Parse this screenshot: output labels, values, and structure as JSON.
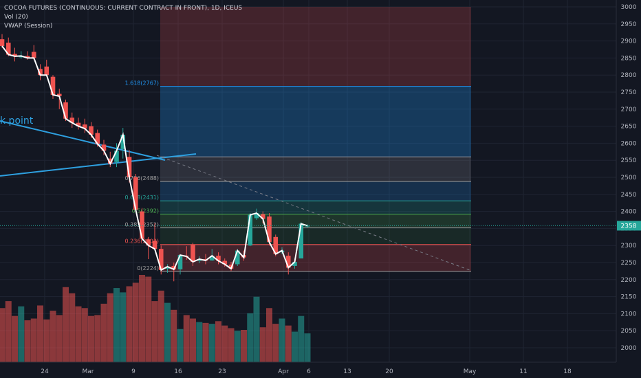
{
  "legend": {
    "symbol": "COCOA FUTURES (CONTINUOUS: CURRENT CONTRACT IN FRONT), 1D, ICEUS",
    "volume": "Vol (20)",
    "vwap": "VWAP (Session)"
  },
  "price_scale": {
    "ticks": [
      3000,
      2950,
      2900,
      2850,
      2800,
      2750,
      2700,
      2650,
      2600,
      2550,
      2500,
      2450,
      2400,
      2350,
      2300,
      2250,
      2200,
      2150,
      2100,
      2050,
      2000
    ],
    "last_price": "2358",
    "last_price_value": 2358,
    "last_price_color": "#26a69a"
  },
  "time_scale": {
    "labels": [
      "24",
      "Mar",
      "9",
      "16",
      "23",
      "Apr",
      "6",
      "13",
      "20",
      "May",
      "11",
      "18"
    ]
  },
  "annotation": {
    "trendline_label": "k point",
    "color": "#2ea0e0"
  },
  "fibonacci": {
    "levels": [
      {
        "label": "1.618(2767)",
        "value": 2767,
        "color": "#2196f3"
      },
      {
        "label": "0.786(2488)",
        "value": 2488,
        "color": "#9e9e9e"
      },
      {
        "label": "0.618(2431)",
        "value": 2431,
        "color": "#26a69a"
      },
      {
        "label": "0.5(2392)",
        "value": 2392,
        "color": "#4caf50"
      },
      {
        "label": "0.382(2352)",
        "value": 2352,
        "color": "#9e9e9e"
      },
      {
        "label": "0.236(2303)",
        "value": 2303,
        "color": "#ef5350"
      },
      {
        "label": "0(2224)",
        "value": 2224,
        "color": "#9e9e9e"
      }
    ],
    "extra_levels": [
      2560
    ]
  },
  "colors": {
    "up": "#26a69a",
    "down": "#ef5350",
    "background": "#131722",
    "grid": "#1f2433",
    "text": "#b2b5be",
    "vwap": "#ffffff"
  },
  "chart_data": {
    "type": "candlestick",
    "y_range": [
      1970,
      3010
    ],
    "candles": [
      {
        "o": 2905,
        "h": 2920,
        "l": 2880,
        "c": 2885
      },
      {
        "o": 2895,
        "h": 2910,
        "l": 2855,
        "c": 2860
      },
      {
        "o": 2862,
        "h": 2880,
        "l": 2840,
        "c": 2855
      },
      {
        "o": 2852,
        "h": 2870,
        "l": 2848,
        "c": 2856
      },
      {
        "o": 2856,
        "h": 2870,
        "l": 2845,
        "c": 2850
      },
      {
        "o": 2868,
        "h": 2888,
        "l": 2845,
        "c": 2850
      },
      {
        "o": 2818,
        "h": 2832,
        "l": 2785,
        "c": 2800
      },
      {
        "o": 2825,
        "h": 2845,
        "l": 2795,
        "c": 2800
      },
      {
        "o": 2795,
        "h": 2800,
        "l": 2730,
        "c": 2742
      },
      {
        "o": 2745,
        "h": 2760,
        "l": 2700,
        "c": 2738
      },
      {
        "o": 2720,
        "h": 2728,
        "l": 2665,
        "c": 2672
      },
      {
        "o": 2675,
        "h": 2690,
        "l": 2645,
        "c": 2660
      },
      {
        "o": 2660,
        "h": 2675,
        "l": 2640,
        "c": 2650
      },
      {
        "o": 2655,
        "h": 2672,
        "l": 2630,
        "c": 2643
      },
      {
        "o": 2650,
        "h": 2662,
        "l": 2615,
        "c": 2625
      },
      {
        "o": 2630,
        "h": 2640,
        "l": 2590,
        "c": 2598
      },
      {
        "o": 2596,
        "h": 2610,
        "l": 2565,
        "c": 2578
      },
      {
        "o": 2555,
        "h": 2575,
        "l": 2530,
        "c": 2540
      },
      {
        "o": 2545,
        "h": 2600,
        "l": 2530,
        "c": 2578
      },
      {
        "o": 2583,
        "h": 2645,
        "l": 2555,
        "c": 2625
      },
      {
        "o": 2560,
        "h": 2580,
        "l": 2485,
        "c": 2500
      },
      {
        "o": 2500,
        "h": 2510,
        "l": 2398,
        "c": 2405
      },
      {
        "o": 2400,
        "h": 2410,
        "l": 2315,
        "c": 2320
      },
      {
        "o": 2318,
        "h": 2325,
        "l": 2260,
        "c": 2300
      },
      {
        "o": 2314,
        "h": 2365,
        "l": 2285,
        "c": 2290
      },
      {
        "o": 2290,
        "h": 2300,
        "l": 2215,
        "c": 2228
      },
      {
        "o": 2232,
        "h": 2245,
        "l": 2220,
        "c": 2238
      },
      {
        "o": 2240,
        "h": 2250,
        "l": 2195,
        "c": 2230
      },
      {
        "o": 2230,
        "h": 2275,
        "l": 2215,
        "c": 2272
      },
      {
        "o": 2270,
        "h": 2298,
        "l": 2258,
        "c": 2268
      },
      {
        "o": 2302,
        "h": 2308,
        "l": 2240,
        "c": 2252
      },
      {
        "o": 2255,
        "h": 2268,
        "l": 2248,
        "c": 2260
      },
      {
        "o": 2260,
        "h": 2275,
        "l": 2245,
        "c": 2256
      },
      {
        "o": 2256,
        "h": 2290,
        "l": 2255,
        "c": 2270
      },
      {
        "o": 2270,
        "h": 2280,
        "l": 2245,
        "c": 2255
      },
      {
        "o": 2255,
        "h": 2262,
        "l": 2238,
        "c": 2245
      },
      {
        "o": 2244,
        "h": 2252,
        "l": 2225,
        "c": 2232
      },
      {
        "o": 2245,
        "h": 2290,
        "l": 2240,
        "c": 2285
      },
      {
        "o": 2272,
        "h": 2285,
        "l": 2255,
        "c": 2265
      },
      {
        "o": 2300,
        "h": 2395,
        "l": 2298,
        "c": 2390
      },
      {
        "o": 2380,
        "h": 2408,
        "l": 2375,
        "c": 2395
      },
      {
        "o": 2392,
        "h": 2400,
        "l": 2365,
        "c": 2378
      },
      {
        "o": 2385,
        "h": 2395,
        "l": 2300,
        "c": 2310
      },
      {
        "o": 2325,
        "h": 2332,
        "l": 2268,
        "c": 2275
      },
      {
        "o": 2280,
        "h": 2295,
        "l": 2275,
        "c": 2285
      },
      {
        "o": 2270,
        "h": 2280,
        "l": 2215,
        "c": 2235
      },
      {
        "o": 2240,
        "h": 2262,
        "l": 2232,
        "c": 2252
      },
      {
        "o": 2262,
        "h": 2368,
        "l": 2262,
        "c": 2364
      },
      {
        "o": 2358,
        "h": 2362,
        "l": 2352,
        "c": 2358
      }
    ],
    "volume": [
      62,
      70,
      53,
      64,
      48,
      50,
      65,
      49,
      59,
      54,
      86,
      79,
      64,
      62,
      53,
      54,
      67,
      79,
      85,
      80,
      87,
      91,
      100,
      98,
      70,
      82,
      68,
      60,
      38,
      54,
      50,
      46,
      45,
      44,
      47,
      42,
      39,
      36,
      37,
      56,
      75,
      40,
      62,
      44,
      50,
      42,
      35,
      53,
      33
    ]
  }
}
